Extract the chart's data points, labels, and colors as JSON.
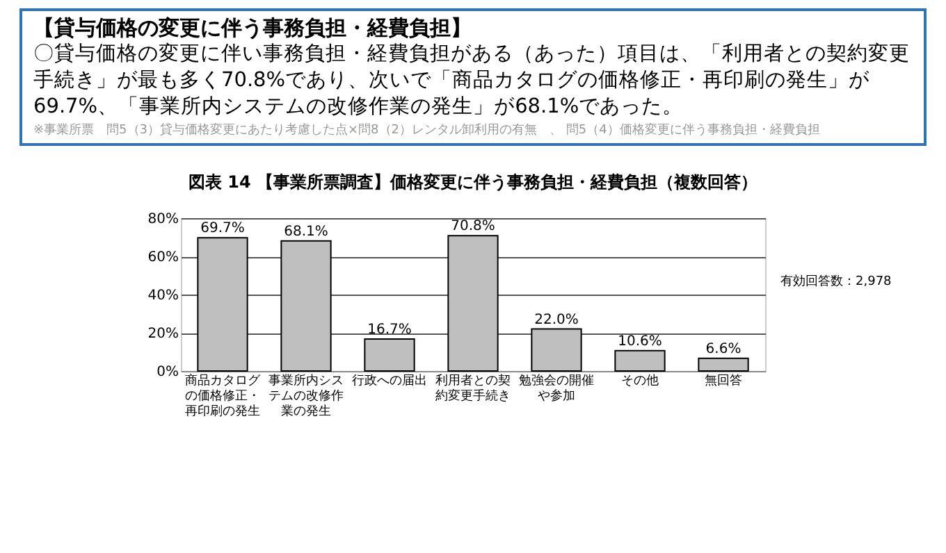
{
  "chart_data": {
    "type": "bar",
    "title": "図表 14 【事業所票調査】価格変更に伴う事務負担・経費負担（複数回答）",
    "annotations": [
      "【貸与価格の変更に伴う事務負担・経費負担】",
      "〇貸与価格の変更に伴い事務負担・経費負担がある（あった）項目は、「利用者との契約変更手続き」が最も多く70.8%であり、次いで「商品カタログの価格修正・再印刷の発生」が69.7%、「事業所内システムの改修作業の発生」が68.1%であった。",
      "※事業所票　問5（3）貸与価格変更にあたり考慮した点×問8（2）レンタル卸利用の有無　、 問5（4）価格変更に伴う事務負担・経費負担",
      "有効回答数：2,978"
    ],
    "categories": [
      "商品カタログの価格修正・再印刷の発生",
      "事業所内システムの改修作業の発生",
      "行政への届出",
      "利用者との契約変更手続き",
      "勉強会の開催や参加",
      "その他",
      "無回答"
    ],
    "values": [
      69.7,
      68.1,
      16.7,
      70.8,
      22.0,
      10.6,
      6.6
    ],
    "value_labels": [
      "69.7%",
      "68.1%",
      "16.7%",
      "70.8%",
      "22.0%",
      "10.6%",
      "6.6%"
    ],
    "color": "#bfbfbf",
    "ylim": [
      0,
      80
    ],
    "yticks": [
      {
        "value": 0,
        "label": "0%"
      },
      {
        "value": 20,
        "label": "20%"
      },
      {
        "value": 40,
        "label": "40%"
      },
      {
        "value": 60,
        "label": "60%"
      },
      {
        "value": 80,
        "label": "80%"
      }
    ],
    "grid": "y"
  }
}
